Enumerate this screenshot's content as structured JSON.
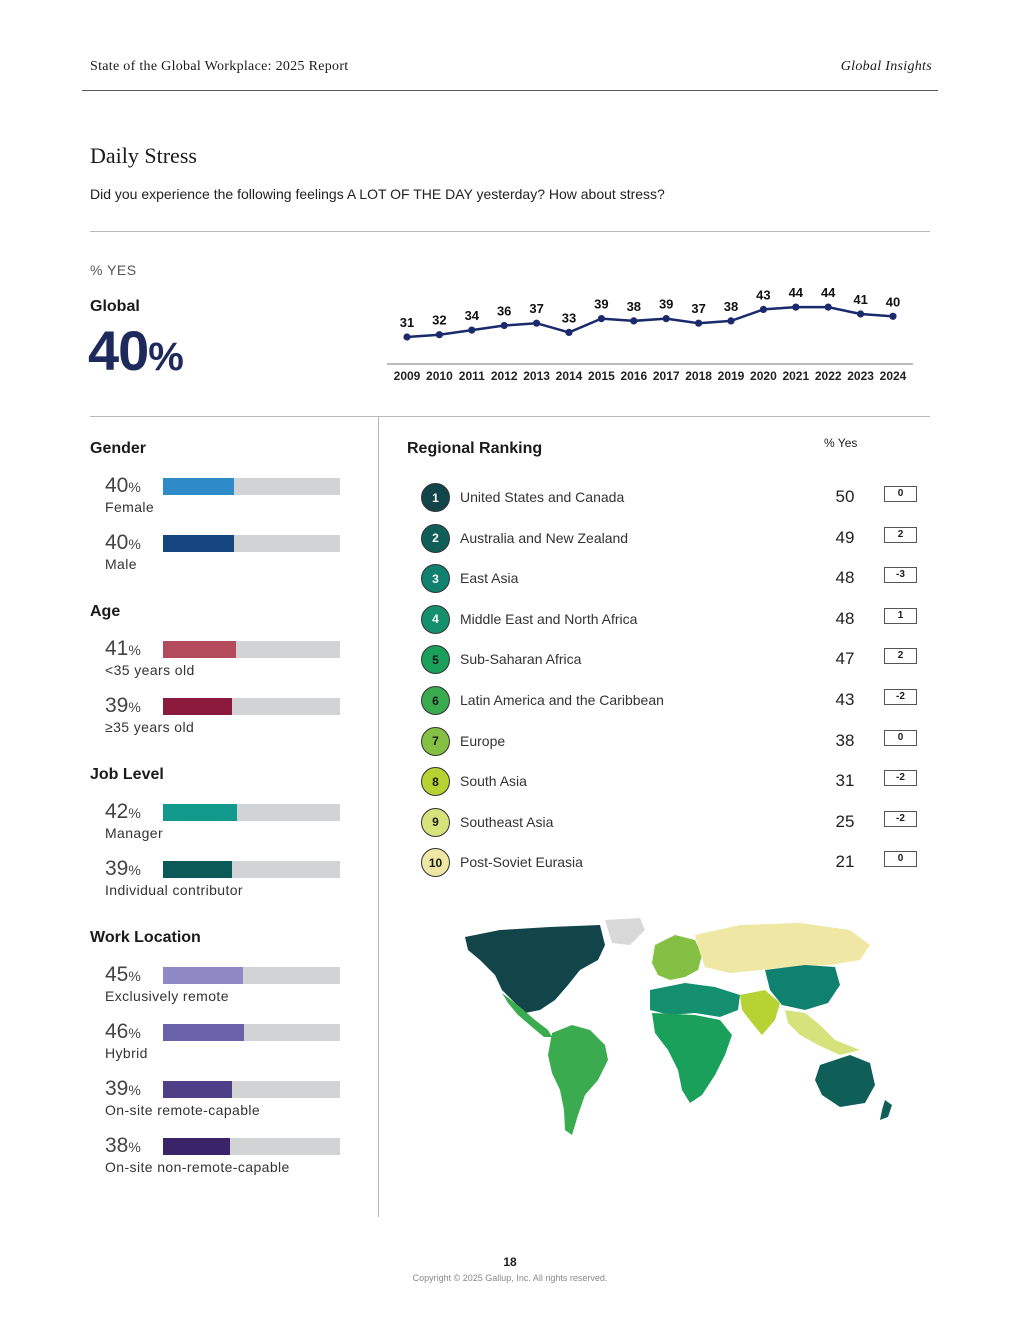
{
  "header": {
    "title": "State of the Global Workplace: 2025 Report",
    "right": "Global Insights"
  },
  "section": {
    "title": "Daily Stress",
    "question": "Did you experience the following feelings A LOT OF THE DAY yesterday? How about stress?"
  },
  "overview": {
    "pct_label": "% YES",
    "global_label": "Global",
    "global_value": "40",
    "global_unit": "%"
  },
  "chart_data": {
    "type": "line",
    "x": [
      "2009",
      "2010",
      "2011",
      "2012",
      "2013",
      "2014",
      "2015",
      "2016",
      "2017",
      "2018",
      "2019",
      "2020",
      "2021",
      "2022",
      "2023",
      "2024"
    ],
    "values": [
      31,
      32,
      34,
      36,
      37,
      33,
      39,
      38,
      39,
      37,
      38,
      43,
      44,
      44,
      41,
      40
    ],
    "color": "#1a2a6c",
    "grid": false
  },
  "colors": {
    "female": "#2e8bc8",
    "male": "#16467f",
    "under35": "#b44b5c",
    "over35": "#8c1a3c",
    "manager": "#129a8c",
    "ic": "#0b5a57",
    "remote": "#8e88c4",
    "hybrid": "#6a62a8",
    "onsite_capable": "#4e3f86",
    "onsite_non": "#3a2368",
    "track": "#d1d3d4"
  },
  "breakdowns": {
    "gender": {
      "title": "Gender",
      "items": [
        {
          "value": 40,
          "label": "Female"
        },
        {
          "value": 40,
          "label": "Male"
        }
      ]
    },
    "age": {
      "title": "Age",
      "items": [
        {
          "value": 41,
          "label": "<35 years old"
        },
        {
          "value": 39,
          "label": "≥35 years old"
        }
      ]
    },
    "job_level": {
      "title": "Job Level",
      "items": [
        {
          "value": 42,
          "label": "Manager"
        },
        {
          "value": 39,
          "label": "Individual contributor"
        }
      ]
    },
    "work_location": {
      "title": "Work Location",
      "items": [
        {
          "value": 45,
          "label": "Exclusively remote"
        },
        {
          "value": 46,
          "label": "Hybrid"
        },
        {
          "value": 39,
          "label": "On-site remote-capable"
        },
        {
          "value": 38,
          "label": "On-site non-remote-capable"
        }
      ]
    },
    "pct_sign": "%"
  },
  "ranking": {
    "title": "Regional Ranking",
    "yes_header": "% Yes",
    "rows": [
      {
        "rank": "1",
        "name": "United States and Canada",
        "value": "50",
        "change": "0",
        "color": "#12454a",
        "text": "#ffffff"
      },
      {
        "rank": "2",
        "name": "Australia and New Zealand",
        "value": "49",
        "change": "2",
        "color": "#0f5f58",
        "text": "#ffffff"
      },
      {
        "rank": "3",
        "name": "East Asia",
        "value": "48",
        "change": "-3",
        "color": "#10806f",
        "text": "#ffffff"
      },
      {
        "rank": "4",
        "name": "Middle East and North Africa",
        "value": "48",
        "change": "1",
        "color": "#15906f",
        "text": "#ffffff"
      },
      {
        "rank": "5",
        "name": "Sub-Saharan Africa",
        "value": "47",
        "change": "2",
        "color": "#1aa05a",
        "text": "#1a1a1a"
      },
      {
        "rank": "6",
        "name": "Latin America and the Caribbean",
        "value": "43",
        "change": "-2",
        "color": "#3bab4f",
        "text": "#1a1a1a"
      },
      {
        "rank": "7",
        "name": "Europe",
        "value": "38",
        "change": "0",
        "color": "#84c043",
        "text": "#1a1a1a"
      },
      {
        "rank": "8",
        "name": "South Asia",
        "value": "31",
        "change": "-2",
        "color": "#b7d233",
        "text": "#1a1a1a"
      },
      {
        "rank": "9",
        "name": "Southeast Asia",
        "value": "25",
        "change": "-2",
        "color": "#d6e27c",
        "text": "#1a1a1a"
      },
      {
        "rank": "10",
        "name": "Post-Soviet Eurasia",
        "value": "21",
        "change": "0",
        "color": "#eee8a4",
        "text": "#1a1a1a"
      }
    ]
  },
  "footer": {
    "page": "18",
    "copyright": "Copyright © 2025 Gallup, Inc. All rights reserved."
  }
}
